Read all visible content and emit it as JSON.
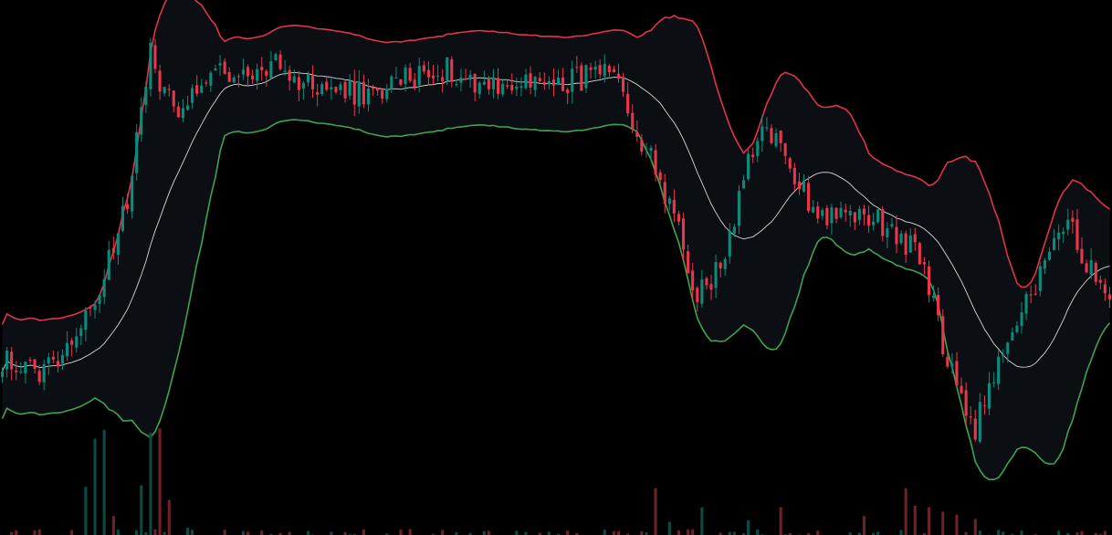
{
  "chart_data": {
    "type": "candlestick",
    "indicator": "bollinger-bands",
    "volume_panel": true,
    "grid": false,
    "legend": "none",
    "colors": {
      "background": "#000000",
      "band_fill": "#0b0f13",
      "up": "#0e8a7a",
      "down": "#e8374a",
      "upper_band": "#e0344a",
      "lower_band": "#3fa34d",
      "middle_band": "#d8d8d8",
      "volume_up": "#0c4a44",
      "volume_down": "#6e2228"
    },
    "price_range": [
      0,
      100
    ],
    "volume_range": [
      0,
      100
    ],
    "waypoints": [
      [
        0,
        33
      ],
      [
        8,
        30
      ],
      [
        16,
        38
      ],
      [
        22,
        48
      ],
      [
        27,
        62
      ],
      [
        30,
        82
      ],
      [
        32,
        90
      ],
      [
        35,
        82
      ],
      [
        39,
        80
      ],
      [
        45,
        88
      ],
      [
        50,
        84
      ],
      [
        58,
        88
      ],
      [
        64,
        85
      ],
      [
        72,
        83
      ],
      [
        80,
        82
      ],
      [
        88,
        86
      ],
      [
        96,
        87
      ],
      [
        106,
        84
      ],
      [
        114,
        84
      ],
      [
        122,
        85
      ],
      [
        130,
        86
      ],
      [
        133,
        83
      ],
      [
        139,
        72
      ],
      [
        146,
        58
      ],
      [
        150,
        44
      ],
      [
        156,
        52
      ],
      [
        160,
        67
      ],
      [
        165,
        76
      ],
      [
        170,
        69
      ],
      [
        176,
        60
      ],
      [
        182,
        60
      ],
      [
        188,
        59
      ],
      [
        194,
        56
      ],
      [
        199,
        50
      ],
      [
        203,
        36
      ],
      [
        207,
        25
      ],
      [
        210,
        20
      ],
      [
        214,
        30
      ],
      [
        218,
        37
      ],
      [
        222,
        45
      ],
      [
        226,
        52
      ],
      [
        230,
        58
      ],
      [
        234,
        51
      ],
      [
        239,
        46
      ]
    ],
    "volume_spikes": [
      [
        18,
        33
      ],
      [
        20,
        66
      ],
      [
        22,
        72
      ],
      [
        24,
        13
      ],
      [
        30,
        34
      ],
      [
        32,
        70
      ],
      [
        34,
        73
      ],
      [
        36,
        24
      ],
      [
        40,
        5
      ],
      [
        141,
        32
      ],
      [
        144,
        9
      ],
      [
        151,
        19
      ],
      [
        161,
        10
      ],
      [
        168,
        19
      ],
      [
        176,
        3
      ],
      [
        186,
        13
      ],
      [
        195,
        32
      ],
      [
        197,
        20
      ],
      [
        200,
        19
      ],
      [
        203,
        16
      ],
      [
        206,
        14
      ],
      [
        210,
        11
      ],
      [
        228,
        3
      ]
    ]
  }
}
